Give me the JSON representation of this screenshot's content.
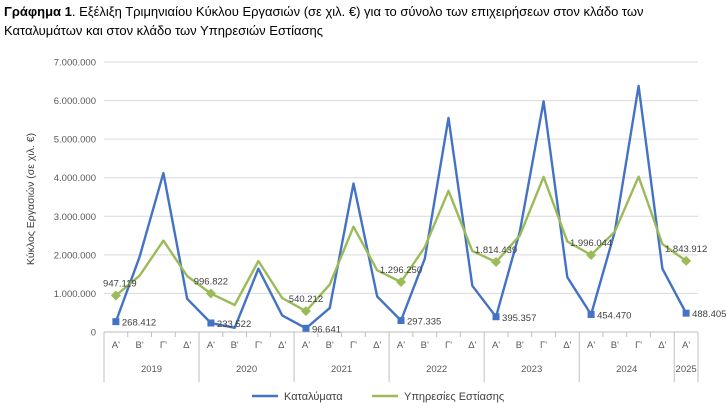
{
  "caption": {
    "lead": "Γράφημα 1",
    "text": ". Εξέλιξη Τριμηνιαίου Κύκλου Εργασιών (σε χιλ. €) για το σύνολο των επιχειρήσεων στον κλάδο των Καταλυμάτων και στον κλάδο των Υπηρεσιών Εστίασης"
  },
  "chart_data": {
    "type": "line",
    "ylabel": "Κύκλος Εργασιών (σε χιλ. €)",
    "ylim": [
      0,
      7000000
    ],
    "yticks": [
      "0",
      "1.000.000",
      "2.000.000",
      "3.000.000",
      "4.000.000",
      "5.000.000",
      "6.000.000",
      "7.000.000"
    ],
    "grid": true,
    "legend_position": "bottom",
    "categories": [
      "Α'",
      "Β'",
      "Γ'",
      "Δ'",
      "Α'",
      "Β'",
      "Γ'",
      "Δ'",
      "Α'",
      "Β'",
      "Γ'",
      "Δ'",
      "Α'",
      "Β'",
      "Γ'",
      "Δ'",
      "Α'",
      "Β'",
      "Γ'",
      "Δ'",
      "Α'",
      "Β'",
      "Γ'",
      "Δ'",
      "Α'"
    ],
    "years": [
      {
        "label": "2019",
        "count": 4
      },
      {
        "label": "2020",
        "count": 4
      },
      {
        "label": "2021",
        "count": 4
      },
      {
        "label": "2022",
        "count": 4
      },
      {
        "label": "2023",
        "count": 4
      },
      {
        "label": "2024",
        "count": 4
      },
      {
        "label": "2025",
        "count": 1
      }
    ],
    "series": [
      {
        "name": "Καταλύματα",
        "color": "#4472C4",
        "marker": "square",
        "values": [
          268412,
          1950000,
          4120000,
          860000,
          233522,
          110000,
          1640000,
          430000,
          96641,
          620000,
          3850000,
          920000,
          297335,
          1900000,
          5550000,
          1200000,
          395357,
          2600000,
          5980000,
          1420000,
          454470,
          2600000,
          6380000,
          1640000,
          488405
        ],
        "labeled_points": [
          0,
          4,
          8,
          12,
          16,
          20,
          24
        ],
        "labels": [
          "268.412",
          "233.522",
          "96.641",
          "297.335",
          "395.357",
          "454.470",
          "488.405"
        ]
      },
      {
        "name": "Υπηρεσίες Εστίασης",
        "color": "#9BBB59",
        "marker": "diamond",
        "values": [
          947119,
          1460000,
          2370000,
          1450000,
          996822,
          700000,
          1840000,
          880000,
          540212,
          1230000,
          2730000,
          1600000,
          1296250,
          2200000,
          3660000,
          2100000,
          1814439,
          2500000,
          4020000,
          2350000,
          1996044,
          2600000,
          4030000,
          2280000,
          1843912
        ],
        "labeled_points": [
          0,
          4,
          8,
          12,
          16,
          20,
          24
        ],
        "labels": [
          "947.119",
          "996.822",
          "540.212",
          "1.296.250",
          "1.814.439",
          "1.996.044",
          "1.843.912"
        ]
      }
    ]
  }
}
